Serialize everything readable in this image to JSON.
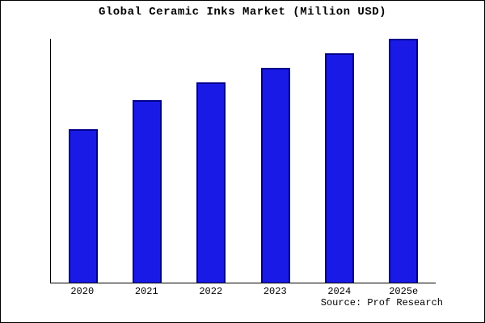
{
  "chart_data": {
    "type": "bar",
    "title": "Global Ceramic Inks Market (Million USD)",
    "categories": [
      "2020",
      "2021",
      "2022",
      "2023",
      "2024",
      "2025e"
    ],
    "values": [
      63,
      75,
      82,
      88,
      94,
      100
    ],
    "xlabel": "",
    "ylabel": "",
    "ylim": [
      0,
      100
    ],
    "value_unit": "relative height (% of tallest bar; no y-axis scale shown)",
    "grid": false,
    "legend": "none",
    "bar_fill": "#1a1ae6",
    "bar_border": "#00008b",
    "source": "Source: Prof Research"
  }
}
